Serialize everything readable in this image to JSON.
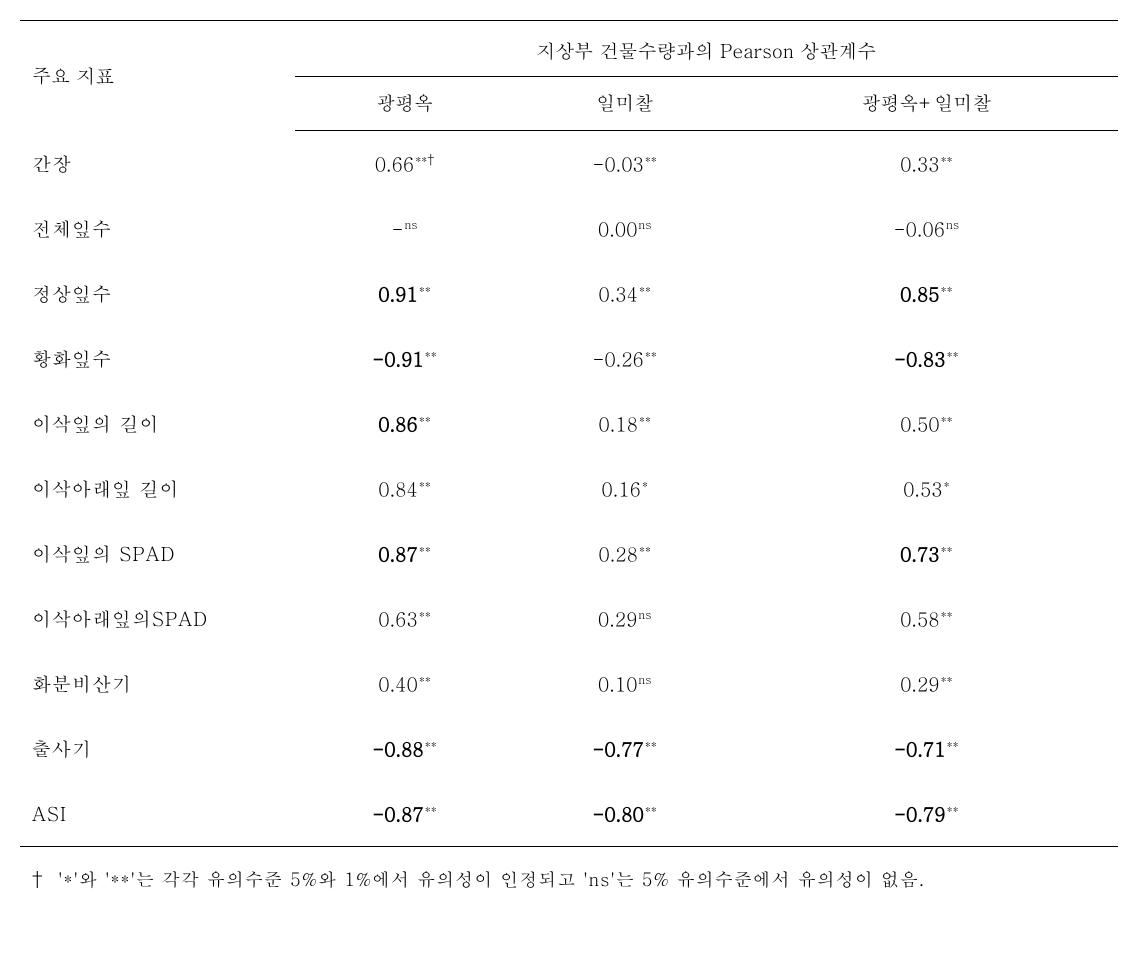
{
  "header": {
    "rowLabelHeader": "주요 지표",
    "pearsonHeader": "지상부 건물수량과의 Pearson 상관계수",
    "col1": "광평옥",
    "col2": "일미찰",
    "col3": "광평옥+일미찰"
  },
  "rows": [
    {
      "label": "간장",
      "v1": {
        "value": "0.66",
        "sup": "**†",
        "bold": false
      },
      "v2": {
        "value": "-0.03",
        "sup": "**",
        "bold": false
      },
      "v3": {
        "value": "0.33",
        "sup": "**",
        "bold": false
      }
    },
    {
      "label": "전체잎수",
      "v1": {
        "value": "-",
        "sup": "ns",
        "bold": false
      },
      "v2": {
        "value": "0.00",
        "sup": "ns",
        "bold": false
      },
      "v3": {
        "value": "-0.06",
        "sup": "ns",
        "bold": false
      }
    },
    {
      "label": "정상잎수",
      "v1": {
        "value": "0.91",
        "sup": "**",
        "bold": true
      },
      "v2": {
        "value": "0.34",
        "sup": "**",
        "bold": false
      },
      "v3": {
        "value": "0.85",
        "sup": "**",
        "bold": true
      }
    },
    {
      "label": "황화잎수",
      "v1": {
        "value": "-0.91",
        "sup": "**",
        "bold": true
      },
      "v2": {
        "value": "-0.26",
        "sup": "**",
        "bold": false
      },
      "v3": {
        "value": "-0.83",
        "sup": "**",
        "bold": true
      }
    },
    {
      "label": "이삭잎의 길이",
      "v1": {
        "value": "0.86",
        "sup": "**",
        "bold": true
      },
      "v2": {
        "value": "0.18",
        "sup": "**",
        "bold": false
      },
      "v3": {
        "value": "0.50",
        "sup": "**",
        "bold": false
      }
    },
    {
      "label": "이삭아래잎 길이",
      "v1": {
        "value": "0.84",
        "sup": "**",
        "bold": false
      },
      "v2": {
        "value": "0.16",
        "sup": "*",
        "bold": false
      },
      "v3": {
        "value": "0.53",
        "sup": "*",
        "bold": false
      }
    },
    {
      "label": "이삭잎의 SPAD",
      "v1": {
        "value": "0.87",
        "sup": "**",
        "bold": true
      },
      "v2": {
        "value": "0.28",
        "sup": "**",
        "bold": false
      },
      "v3": {
        "value": "0.73",
        "sup": "**",
        "bold": true
      }
    },
    {
      "label": "이삭아래잎의SPAD",
      "v1": {
        "value": "0.63",
        "sup": "**",
        "bold": false
      },
      "v2": {
        "value": "0.29",
        "sup": "ns",
        "bold": false
      },
      "v3": {
        "value": "0.58",
        "sup": "**",
        "bold": false
      }
    },
    {
      "label": "화분비산기",
      "v1": {
        "value": "0.40",
        "sup": "**",
        "bold": false
      },
      "v2": {
        "value": "0.10",
        "sup": "ns",
        "bold": false
      },
      "v3": {
        "value": "0.29",
        "sup": "**",
        "bold": false
      }
    },
    {
      "label": "출사기",
      "v1": {
        "value": "-0.88",
        "sup": "**",
        "bold": true
      },
      "v2": {
        "value": "-0.77",
        "sup": "**",
        "bold": true
      },
      "v3": {
        "value": "-0.71",
        "sup": "**",
        "bold": true
      }
    },
    {
      "label": "ASI",
      "v1": {
        "value": "-0.87",
        "sup": "**",
        "bold": true
      },
      "v2": {
        "value": "-0.80",
        "sup": "**",
        "bold": true
      },
      "v3": {
        "value": "-0.79",
        "sup": "**",
        "bold": true
      }
    }
  ],
  "footnote": {
    "dagger": "†",
    "text": "'*'와 '**'는 각각 유의수준 5%와 1%에서 유의성이 인정되고 'ns'는 5% 유의수준에서 유의성이 없음."
  },
  "style": {
    "backgroundColor": "#ffffff",
    "textColor": "#000000",
    "borderColor": "#000000",
    "fontSize": 19,
    "footnoteFontSize": 18,
    "supFontSize": 12
  }
}
